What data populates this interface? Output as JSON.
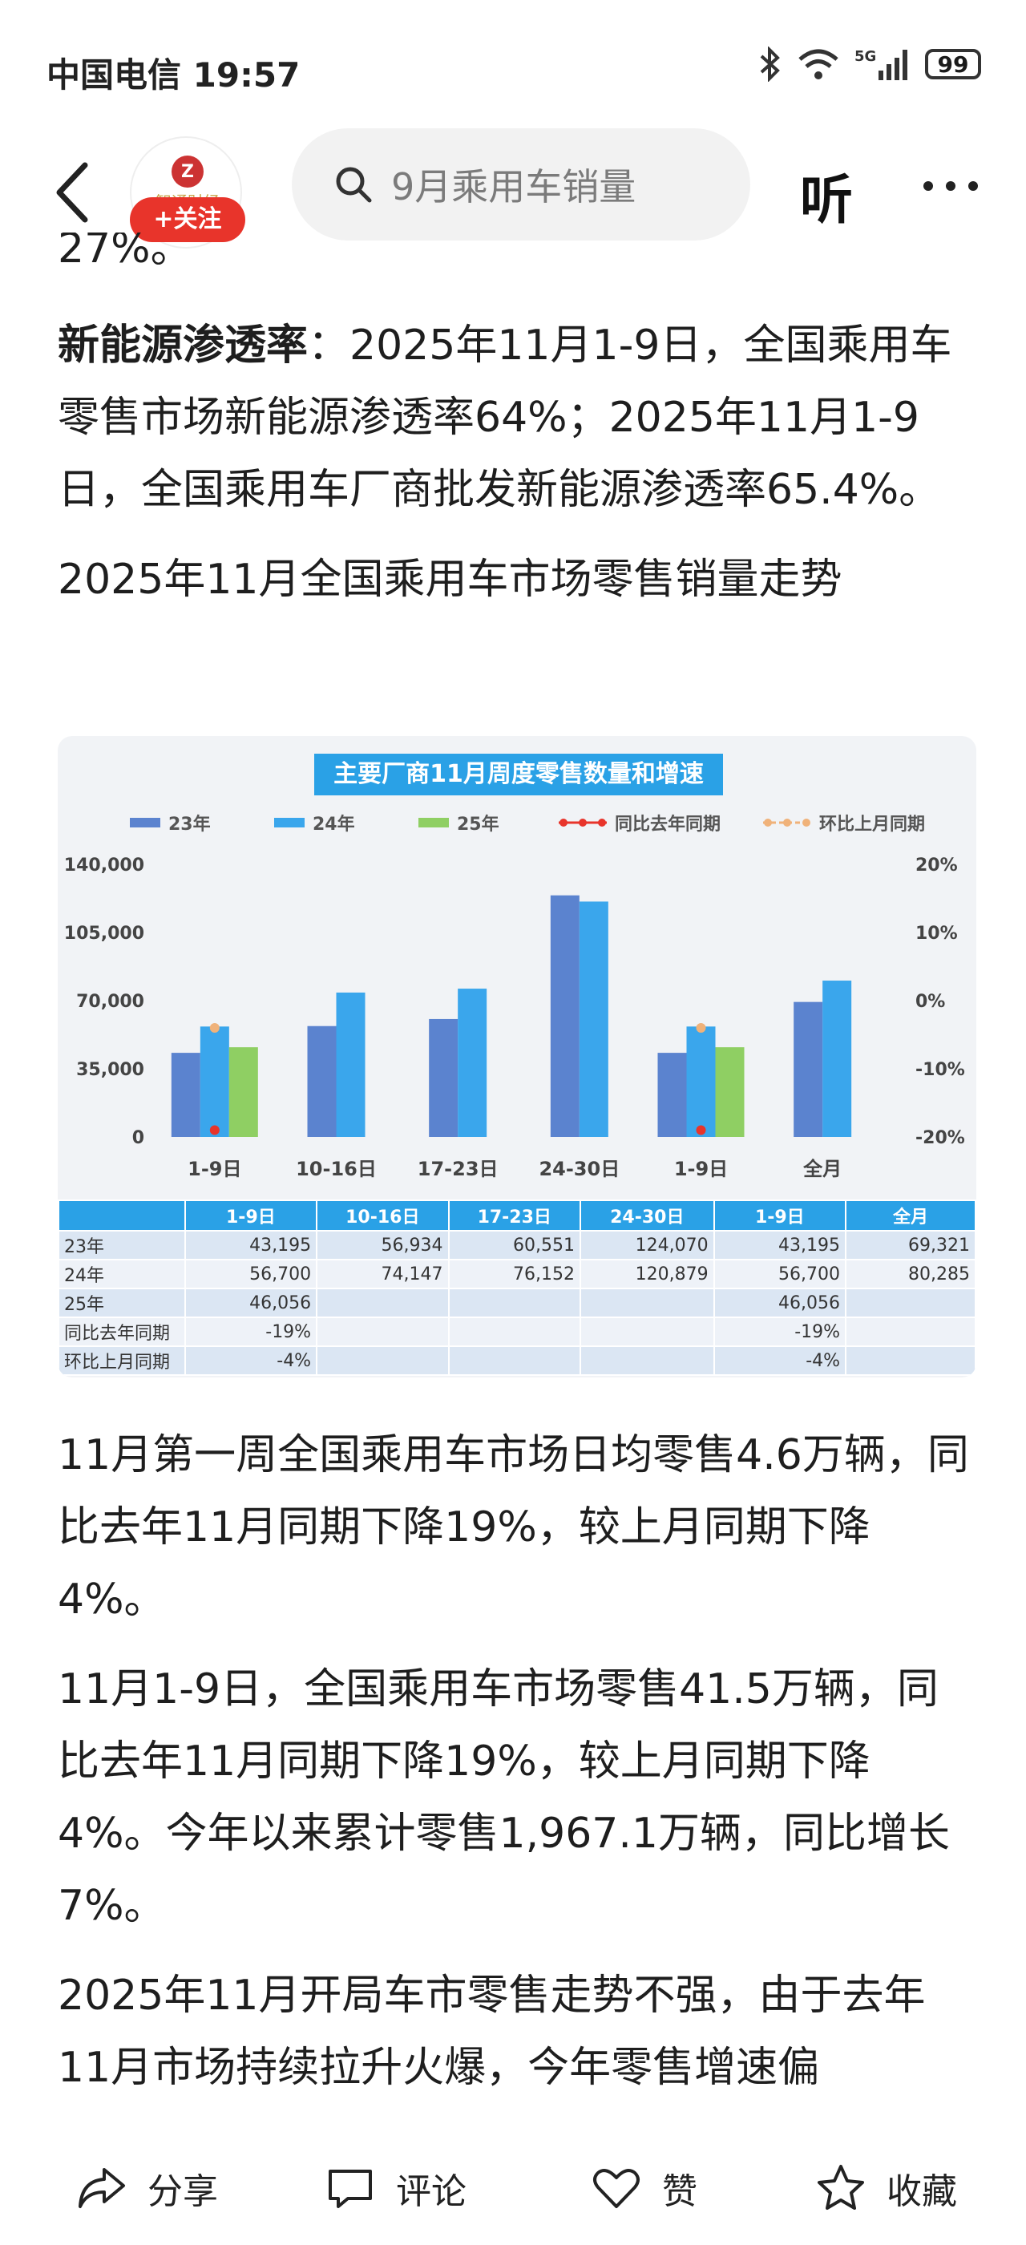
{
  "status": {
    "carrier_time": "中国电信 19:57",
    "battery": "99"
  },
  "nav": {
    "search_placeholder": "9月乘用车销量",
    "listen_label": "听",
    "follow_label": "+关注",
    "avatar_text": "智通财经"
  },
  "article": {
    "clipped_top": "27%。",
    "p1_bold": "新能源渗透率",
    "p1_rest": "：2025年11月1-9日，全国乘用车零售市场新能源渗透率64%；2025年11月1-9日，全国乘用车厂商批发新能源渗透率65.4%。",
    "p2": "2025年11月全国乘用车市场零售销量走势",
    "p3": "11月第一周全国乘用车市场日均零售4.6万辆，同比去年11月同期下降19%，较上月同期下降4%。",
    "p4": "11月1-9日，全国乘用车市场零售41.5万辆，同比去年11月同期下降19%，较上月同期下降4%。今年以来累计零售1,967.1万辆，同比增长7%。",
    "p5": "2025年11月开局车市零售走势不强，由于去年11月市场持续拉升火爆，今年零售增速偏"
  },
  "chart_data": {
    "type": "bar",
    "title": "主要厂商11月周度零售数量和增速",
    "categories": [
      "1-9日",
      "10-16日",
      "17-23日",
      "24-30日",
      "1-9日",
      "全月"
    ],
    "series": [
      {
        "name": "23年",
        "values": [
          43195,
          56934,
          60551,
          124070,
          43195,
          69321
        ],
        "color": "#5b83cf"
      },
      {
        "name": "24年",
        "values": [
          56700,
          74147,
          76152,
          120879,
          56700,
          80285
        ],
        "color": "#3aa6ec"
      },
      {
        "name": "25年",
        "values": [
          46056,
          null,
          null,
          null,
          46056,
          null
        ],
        "color": "#8fcf63"
      }
    ],
    "line_series": [
      {
        "name": "同比去年同期",
        "values": [
          -19,
          null,
          null,
          null,
          -19,
          null
        ],
        "color": "#e8342b"
      },
      {
        "name": "环比上月同期",
        "values": [
          -4,
          null,
          null,
          null,
          -4,
          null
        ],
        "color": "#f0b27a"
      }
    ],
    "ylim": [
      0,
      140000
    ],
    "y_ticks": [
      "140,000",
      "105,000",
      "70,000",
      "35,000",
      "0"
    ],
    "y2lim": [
      -20,
      20
    ],
    "y2_ticks": [
      "20%",
      "10%",
      "0%",
      "-10%",
      "-20%"
    ],
    "legend_position": "top"
  },
  "table": {
    "header": [
      "",
      "1-9日",
      "10-16日",
      "17-23日",
      "24-30日",
      "1-9日",
      "全月"
    ],
    "rows": [
      [
        "23年",
        "43,195",
        "56,934",
        "60,551",
        "124,070",
        "43,195",
        "69,321"
      ],
      [
        "24年",
        "56,700",
        "74,147",
        "76,152",
        "120,879",
        "56,700",
        "80,285"
      ],
      [
        "25年",
        "46,056",
        "",
        "",
        "",
        "46,056",
        ""
      ],
      [
        "同比去年同期",
        "-19%",
        "",
        "",
        "",
        "-19%",
        ""
      ],
      [
        "环比上月同期",
        "-4%",
        "",
        "",
        "",
        "-4%",
        ""
      ]
    ]
  },
  "bottom": {
    "share": "分享",
    "comment": "评论",
    "like": "赞",
    "favorite": "收藏"
  }
}
